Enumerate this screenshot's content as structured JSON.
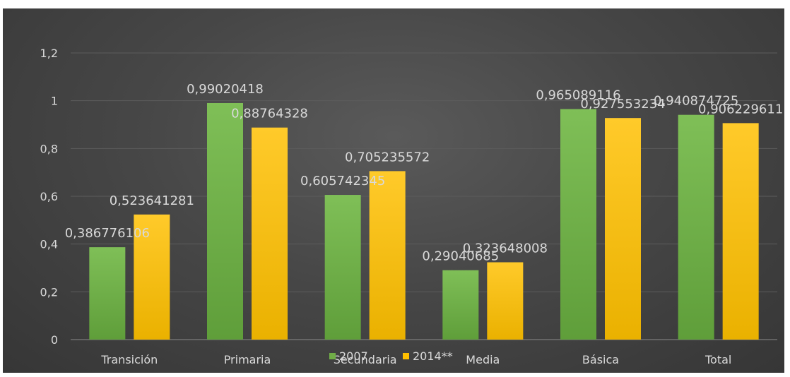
{
  "chart_data": {
    "type": "bar",
    "categories": [
      "Transición",
      "Primaria",
      "Secundaria",
      "Media",
      "Básica",
      "Total"
    ],
    "series": [
      {
        "name": "2007",
        "color": "#70ad47",
        "values": [
          0.386776106,
          0.99020418,
          0.605742345,
          0.29040685,
          0.965089116,
          0.940874725
        ],
        "labels": [
          "0,386776106",
          "0,99020418",
          "0,605742345",
          "0,29040685",
          "0,965089116",
          "0,940874725"
        ]
      },
      {
        "name": "2014**",
        "color": "#ffc000",
        "values": [
          0.523641281,
          0.88764328,
          0.705235572,
          0.323648008,
          0.927553234,
          0.906229611
        ],
        "labels": [
          "0,523641281",
          "0,88764328",
          "0,705235572",
          "0,323648008",
          "0,927553234",
          "0,906229611"
        ]
      }
    ],
    "yticks": [
      0,
      0.2,
      0.4,
      0.6,
      0.8,
      1,
      1.2
    ],
    "ytick_labels": [
      "0",
      "0,2",
      "0,4",
      "0,6",
      "0,8",
      "1",
      "1,2"
    ],
    "ylim": [
      0,
      1.2
    ],
    "grid": true,
    "legend_position": "bottom",
    "title": "",
    "xlabel": "",
    "ylabel": ""
  }
}
